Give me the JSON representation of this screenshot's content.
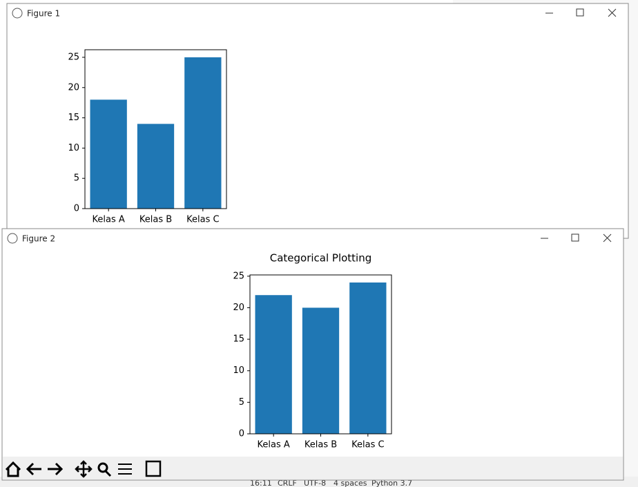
{
  "windows": [
    {
      "title": "Figure 1"
    },
    {
      "title": "Figure 2"
    }
  ],
  "status_bar": [
    "16:11",
    "CRLF",
    "UTF-8",
    "4 spaces",
    "Python 3.7"
  ],
  "chart_data": [
    {
      "type": "bar",
      "categories": [
        "Kelas A",
        "Kelas B",
        "Kelas C"
      ],
      "values": [
        18,
        14,
        25
      ],
      "color": "#1f77b4",
      "ylim": [
        0,
        26.25
      ],
      "yticks": [
        0,
        5,
        10,
        15,
        20,
        25
      ]
    },
    {
      "type": "bar",
      "title": "Categorical Plotting",
      "categories": [
        "Kelas A",
        "Kelas B",
        "Kelas C"
      ],
      "values": [
        22,
        20,
        24
      ],
      "color": "#1f77b4",
      "ylim": [
        0,
        25.2
      ],
      "yticks": [
        0,
        5,
        10,
        15,
        20,
        25
      ]
    }
  ]
}
